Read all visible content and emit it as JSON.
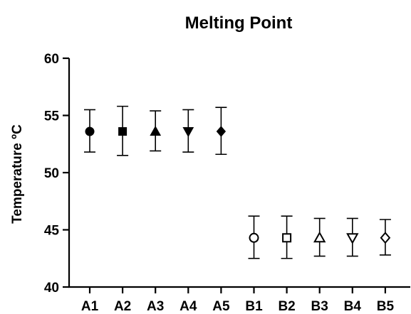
{
  "chart_data": {
    "type": "scatter",
    "title": "Melting Point",
    "xlabel": "",
    "ylabel": "Temperature ºC",
    "ylim": [
      40,
      60
    ],
    "yticks": [
      40,
      45,
      50,
      55,
      60
    ],
    "grid": false,
    "legend": "none",
    "categories": [
      "A1",
      "A2",
      "A3",
      "A4",
      "A5",
      "B1",
      "B2",
      "B3",
      "B4",
      "B5"
    ],
    "points": [
      {
        "category": "A1",
        "mean": 53.6,
        "error_low": 51.8,
        "error_high": 55.5,
        "marker": "circle",
        "filled": true
      },
      {
        "category": "A2",
        "mean": 53.6,
        "error_low": 51.5,
        "error_high": 55.8,
        "marker": "square",
        "filled": true
      },
      {
        "category": "A3",
        "mean": 53.6,
        "error_low": 51.9,
        "error_high": 55.4,
        "marker": "triangle-up",
        "filled": true
      },
      {
        "category": "A4",
        "mean": 53.6,
        "error_low": 51.8,
        "error_high": 55.5,
        "marker": "triangle-down",
        "filled": true
      },
      {
        "category": "A5",
        "mean": 53.6,
        "error_low": 51.6,
        "error_high": 55.7,
        "marker": "diamond",
        "filled": true
      },
      {
        "category": "B1",
        "mean": 44.3,
        "error_low": 42.5,
        "error_high": 46.2,
        "marker": "circle",
        "filled": false
      },
      {
        "category": "B2",
        "mean": 44.3,
        "error_low": 42.5,
        "error_high": 46.2,
        "marker": "square",
        "filled": false
      },
      {
        "category": "B3",
        "mean": 44.3,
        "error_low": 42.7,
        "error_high": 46.0,
        "marker": "triangle-up",
        "filled": false
      },
      {
        "category": "B4",
        "mean": 44.3,
        "error_low": 42.7,
        "error_high": 46.0,
        "marker": "triangle-down",
        "filled": false
      },
      {
        "category": "B5",
        "mean": 44.3,
        "error_low": 42.8,
        "error_high": 45.9,
        "marker": "diamond",
        "filled": false
      }
    ],
    "colors": {
      "ink": "#000000",
      "background": "#ffffff"
    }
  }
}
